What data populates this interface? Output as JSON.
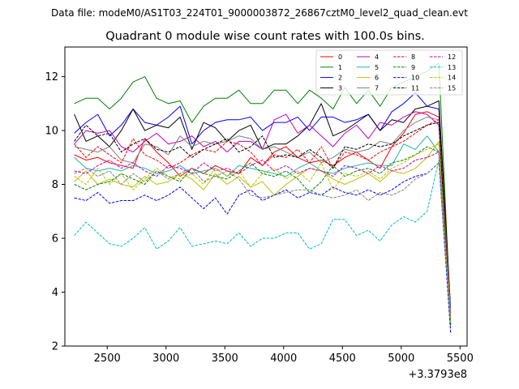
{
  "chart_data": {
    "type": "line",
    "suptitle": "Data file: modeM0/AS1T03_224T01_9000003872_26867cztM0_level2_quad_clean.evt",
    "title": "Quadrant 0 module wise count rates with 100.0s bins.",
    "xlabel": "",
    "ylabel": "",
    "x_offset_label": "+3.3793e8",
    "xlim": [
      2140,
      5560
    ],
    "ylim": [
      2,
      13.1
    ],
    "xticks": [
      2500,
      3000,
      3500,
      4000,
      4500,
      5000,
      5500
    ],
    "yticks": [
      2,
      4,
      6,
      8,
      10,
      12
    ],
    "x": [
      2220,
      2320,
      2420,
      2520,
      2620,
      2720,
      2820,
      2920,
      3020,
      3120,
      3220,
      3320,
      3420,
      3520,
      3620,
      3720,
      3820,
      3920,
      4020,
      4120,
      4220,
      4320,
      4420,
      4520,
      4620,
      4720,
      4820,
      4920,
      5020,
      5120,
      5220,
      5320,
      5420
    ],
    "series": [
      {
        "name": "0",
        "color": "#ff0000",
        "dash": false,
        "values": [
          9.1,
          8.9,
          9.0,
          8.8,
          8.7,
          8.6,
          9.7,
          9.2,
          8.8,
          8.3,
          8.6,
          8.4,
          8.7,
          8.5,
          8.4,
          9.0,
          8.7,
          9.2,
          9.4,
          9.0,
          8.8,
          8.9,
          8.7,
          9.0,
          9.2,
          8.9,
          8.6,
          9.4,
          9.9,
          10.6,
          10.7,
          10.5,
          2.8
        ]
      },
      {
        "name": "1",
        "color": "#008000",
        "dash": false,
        "values": [
          11.0,
          11.2,
          11.2,
          10.8,
          11.2,
          11.8,
          12.0,
          11.2,
          11.0,
          11.1,
          10.3,
          10.9,
          11.2,
          11.2,
          11.5,
          11.0,
          11.0,
          11.5,
          11.5,
          11.0,
          11.5,
          11.2,
          10.8,
          11.6,
          11.0,
          11.5,
          10.9,
          11.6,
          11.8,
          12.0,
          12.2,
          12.5,
          3.0
        ]
      },
      {
        "name": "2",
        "color": "#0000ff",
        "dash": false,
        "values": [
          9.9,
          10.3,
          10.6,
          9.8,
          10.2,
          10.8,
          10.3,
          10.2,
          10.5,
          10.9,
          9.5,
          10.0,
          10.3,
          10.4,
          10.4,
          10.5,
          10.0,
          10.3,
          10.3,
          10.5,
          10.0,
          10.5,
          10.5,
          10.3,
          10.4,
          10.6,
          10.0,
          10.7,
          11.0,
          11.4,
          10.9,
          10.8,
          3.2
        ]
      },
      {
        "name": "3",
        "color": "#000000",
        "dash": false,
        "values": [
          10.6,
          9.6,
          9.8,
          9.4,
          10.0,
          10.8,
          10.0,
          10.2,
          10.1,
          10.5,
          9.3,
          10.3,
          10.1,
          9.6,
          10.0,
          10.2,
          9.3,
          9.5,
          9.5,
          9.8,
          10.2,
          11.0,
          9.8,
          10.0,
          10.3,
          10.6,
          10.0,
          10.4,
          10.3,
          10.8,
          10.9,
          11.1,
          3.4
        ]
      },
      {
        "name": "4",
        "color": "#bf00bf",
        "dash": false,
        "values": [
          9.5,
          10.0,
          9.9,
          10.0,
          9.4,
          9.2,
          9.6,
          9.9,
          9.5,
          9.6,
          9.8,
          9.4,
          9.6,
          9.2,
          9.6,
          9.6,
          9.3,
          10.4,
          10.6,
          9.9,
          10.2,
          9.8,
          9.4,
          9.9,
          10.2,
          9.7,
          10.3,
          10.2,
          10.5,
          10.7,
          10.6,
          10.2,
          3.1
        ]
      },
      {
        "name": "5",
        "color": "#20b2aa",
        "dash": false,
        "values": [
          9.0,
          8.6,
          8.5,
          8.6,
          8.5,
          8.7,
          8.6,
          8.4,
          8.5,
          8.7,
          8.4,
          8.5,
          8.6,
          8.3,
          8.7,
          8.6,
          8.5,
          8.4,
          8.3,
          8.6,
          8.8,
          8.5,
          8.4,
          8.6,
          8.7,
          8.8,
          8.7,
          8.7,
          9.5,
          9.3,
          9.8,
          9.2,
          3.3
        ]
      },
      {
        "name": "6",
        "color": "#bfbf00",
        "dash": false,
        "values": [
          8.1,
          8.5,
          8.0,
          8.2,
          8.0,
          7.9,
          8.3,
          8.0,
          8.1,
          8.4,
          8.2,
          7.8,
          8.4,
          8.0,
          8.3,
          7.9,
          8.1,
          7.6,
          8.0,
          8.3,
          8.6,
          8.5,
          8.2,
          8.0,
          8.2,
          8.4,
          8.1,
          8.5,
          8.4,
          8.6,
          9.0,
          9.6,
          3.0
        ]
      },
      {
        "name": "7",
        "color": "#808080",
        "dash": false,
        "values": [
          9.4,
          9.3,
          9.2,
          9.4,
          8.9,
          8.8,
          9.5,
          9.4,
          9.1,
          9.8,
          9.4,
          9.6,
          9.5,
          9.6,
          9.8,
          9.7,
          9.3,
          9.4,
          9.2,
          9.0,
          9.2,
          8.8,
          9.0,
          9.3,
          9.2,
          9.3,
          9.6,
          9.5,
          10.0,
          10.3,
          10.5,
          10.4,
          3.2
        ]
      },
      {
        "name": "8",
        "color": "#ff0000",
        "dash": true,
        "values": [
          9.5,
          9.0,
          9.4,
          9.1,
          8.8,
          9.7,
          9.1,
          8.9,
          8.6,
          8.8,
          9.1,
          9.3,
          9.2,
          9.6,
          9.5,
          9.2,
          8.7,
          9.1,
          9.0,
          9.3,
          8.8,
          9.4,
          8.6,
          9.2,
          9.1,
          8.9,
          9.2,
          9.4,
          9.6,
          9.9,
          10.2,
          10.4,
          2.9
        ]
      },
      {
        "name": "9",
        "color": "#008000",
        "dash": true,
        "values": [
          8.0,
          7.8,
          8.0,
          8.1,
          8.4,
          8.2,
          8.0,
          8.5,
          8.3,
          8.1,
          8.6,
          8.4,
          8.3,
          8.2,
          8.5,
          8.8,
          8.4,
          8.3,
          8.5,
          8.2,
          7.7,
          8.1,
          8.7,
          8.3,
          8.5,
          8.6,
          8.4,
          8.8,
          8.9,
          9.1,
          9.4,
          9.2,
          2.8
        ]
      },
      {
        "name": "10",
        "color": "#0000ff",
        "dash": true,
        "values": [
          7.5,
          7.4,
          7.7,
          7.3,
          7.4,
          7.4,
          7.6,
          7.4,
          7.6,
          7.9,
          7.5,
          7.1,
          7.5,
          6.9,
          7.6,
          7.8,
          7.4,
          7.6,
          7.8,
          7.5,
          7.7,
          7.6,
          7.9,
          7.7,
          7.6,
          7.8,
          7.6,
          7.8,
          8.1,
          8.3,
          8.4,
          8.8,
          2.5
        ]
      },
      {
        "name": "11",
        "color": "#000000",
        "dash": true,
        "values": [
          9.6,
          10.2,
          9.8,
          9.9,
          9.2,
          9.5,
          9.7,
          9.3,
          9.2,
          9.4,
          9.0,
          9.3,
          9.5,
          9.7,
          9.2,
          9.4,
          9.8,
          9.0,
          9.1,
          9.0,
          9.3,
          9.0,
          8.6,
          9.4,
          9.3,
          9.5,
          9.4,
          9.5,
          9.8,
          10.0,
          10.2,
          10.3,
          2.7
        ]
      },
      {
        "name": "12",
        "color": "#bf00bf",
        "dash": true,
        "values": [
          8.5,
          8.4,
          8.7,
          8.9,
          8.6,
          8.8,
          8.5,
          8.3,
          8.7,
          8.6,
          8.4,
          8.8,
          8.5,
          8.6,
          8.4,
          8.7,
          8.9,
          8.5,
          8.7,
          8.4,
          8.6,
          8.5,
          8.3,
          8.7,
          8.6,
          8.4,
          8.7,
          8.5,
          8.6,
          8.9,
          9.0,
          9.2,
          2.9
        ]
      },
      {
        "name": "13",
        "color": "#00bfbf",
        "dash": true,
        "values": [
          6.1,
          6.6,
          6.2,
          5.8,
          5.7,
          6.0,
          6.4,
          5.6,
          5.9,
          6.4,
          5.7,
          5.8,
          5.9,
          5.8,
          6.2,
          5.7,
          6.0,
          6.0,
          6.2,
          6.2,
          5.6,
          5.8,
          6.7,
          6.7,
          6.1,
          6.3,
          5.9,
          6.5,
          6.8,
          6.6,
          7.0,
          8.9,
          2.8
        ]
      },
      {
        "name": "14",
        "color": "#bfbf00",
        "dash": true,
        "values": [
          8.3,
          8.0,
          8.6,
          8.0,
          8.4,
          7.8,
          8.2,
          8.6,
          8.3,
          8.2,
          8.4,
          8.0,
          8.6,
          8.3,
          8.5,
          7.9,
          8.4,
          8.6,
          8.2,
          8.5,
          8.1,
          8.8,
          7.8,
          8.4,
          8.3,
          8.5,
          8.2,
          8.6,
          8.8,
          9.1,
          9.3,
          9.5,
          2.9
        ]
      },
      {
        "name": "15",
        "color": "#808080",
        "dash": true,
        "values": [
          8.4,
          8.6,
          8.3,
          8.5,
          8.0,
          8.4,
          8.1,
          8.5,
          8.2,
          8.4,
          8.6,
          8.1,
          8.3,
          8.5,
          8.2,
          7.6,
          7.5,
          7.6,
          7.7,
          7.8,
          7.8,
          7.6,
          7.5,
          7.6,
          7.8,
          7.4,
          7.7,
          7.6,
          7.8,
          8.2,
          8.4,
          8.8,
          2.9
        ]
      }
    ]
  }
}
